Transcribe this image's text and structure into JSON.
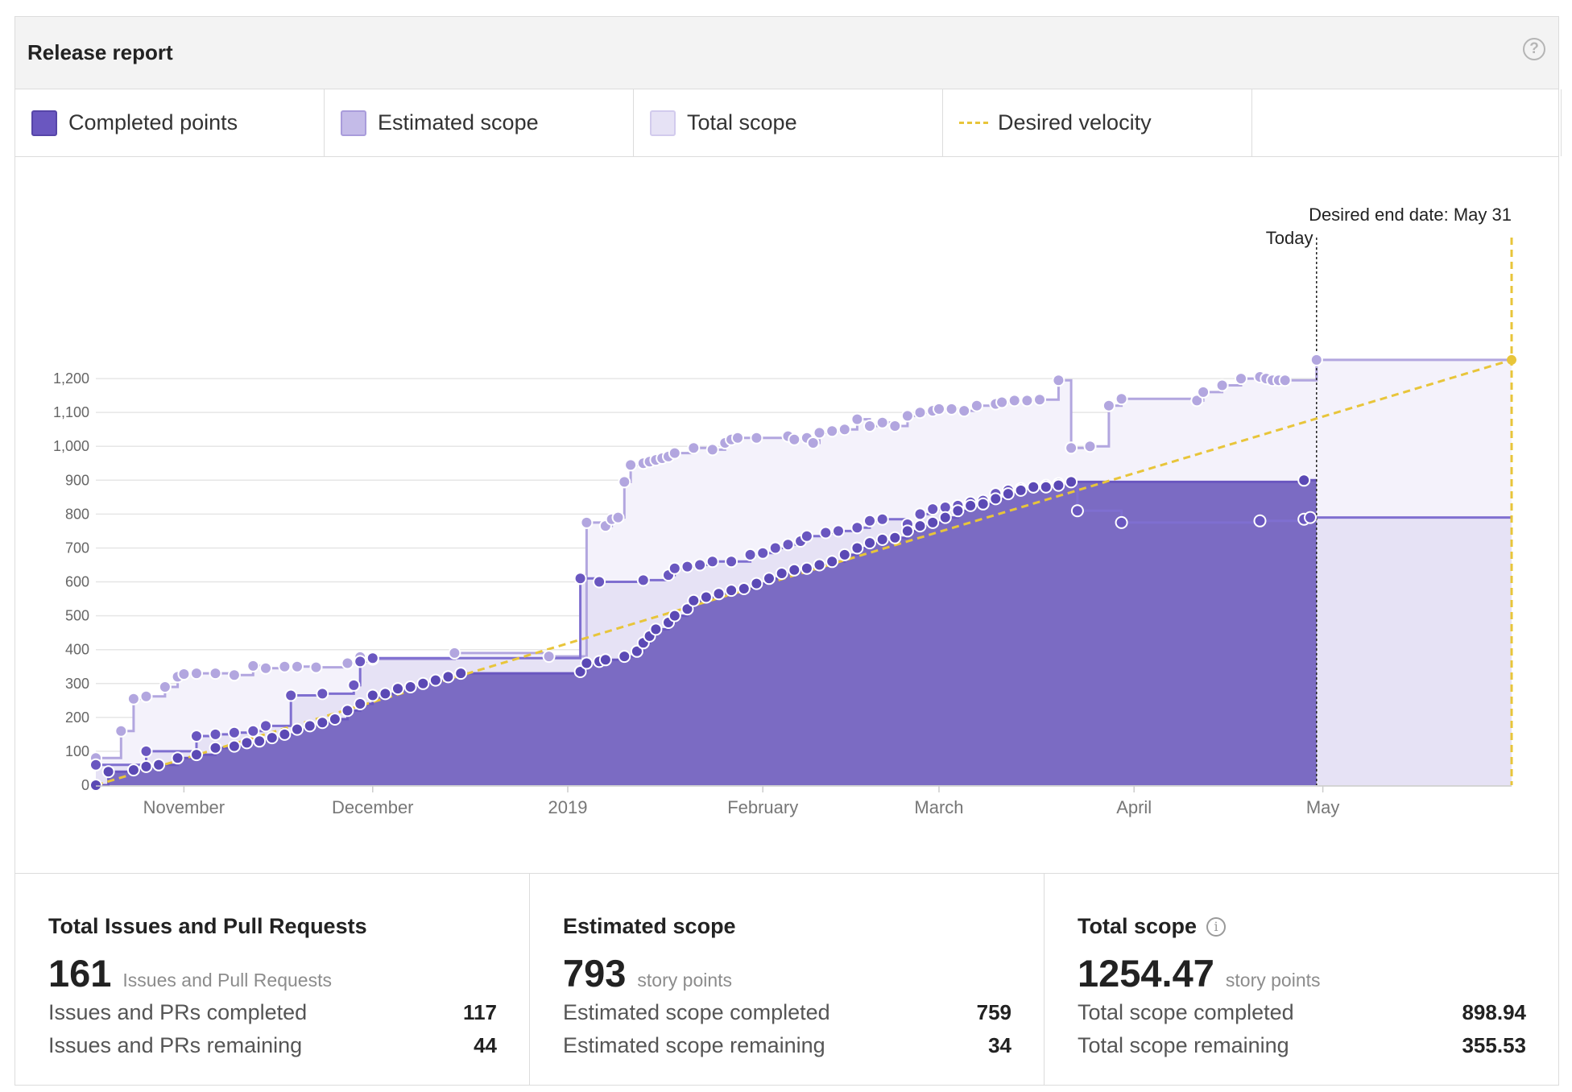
{
  "header": {
    "title": "Release report",
    "help_icon": "question-circle-icon"
  },
  "legend": [
    {
      "label": "Completed points",
      "color": "#6a57c0"
    },
    {
      "label": "Estimated scope",
      "color": "#c4bbe8"
    },
    {
      "label": "Total scope",
      "color": "#e6e2f5"
    },
    {
      "label": "Desired velocity",
      "color": "#e8c53a"
    }
  ],
  "chart_data": {
    "type": "area",
    "x_axis": {
      "ticks": [
        "November",
        "December",
        "2019",
        "February",
        "March",
        "April",
        "May"
      ],
      "tick_dates": [
        "2018-11-01",
        "2018-12-01",
        "2019-01-01",
        "2019-02-01",
        "2019-03-01",
        "2019-04-01",
        "2019-05-01"
      ],
      "range": [
        "2018-10-18",
        "2019-05-31"
      ]
    },
    "y_axis": {
      "ticks": [
        "0",
        "100",
        "200",
        "300",
        "400",
        "500",
        "600",
        "700",
        "800",
        "900",
        "1,000",
        "1,100",
        "1,200"
      ],
      "range": [
        0,
        1300
      ]
    },
    "grid": true,
    "annotations": {
      "today_label": "Today",
      "today_date": "2019-04-30",
      "end_label": "Desired end date: May 31",
      "end_date": "2019-05-31"
    },
    "series": [
      {
        "name": "Total scope",
        "color": "#b2a6df",
        "x": [
          "2018-10-18",
          "2018-10-22",
          "2018-10-24",
          "2018-10-26",
          "2018-10-29",
          "2018-10-31",
          "2018-11-01",
          "2018-11-03",
          "2018-11-06",
          "2018-11-09",
          "2018-11-12",
          "2018-11-14",
          "2018-11-17",
          "2018-11-19",
          "2018-11-22",
          "2018-11-27",
          "2018-11-29",
          "2018-12-01",
          "2018-12-14",
          "2018-12-29",
          "2019-01-04",
          "2019-01-07",
          "2019-01-08",
          "2019-01-09",
          "2019-01-10",
          "2019-01-11",
          "2019-01-13",
          "2019-01-14",
          "2019-01-15",
          "2019-01-16",
          "2019-01-17",
          "2019-01-18",
          "2019-01-21",
          "2019-01-24",
          "2019-01-26",
          "2019-01-27",
          "2019-01-28",
          "2019-01-31",
          "2019-02-05",
          "2019-02-06",
          "2019-02-08",
          "2019-02-09",
          "2019-02-10",
          "2019-02-12",
          "2019-02-14",
          "2019-02-16",
          "2019-02-18",
          "2019-02-20",
          "2019-02-22",
          "2019-02-24",
          "2019-02-26",
          "2019-02-28",
          "2019-03-01",
          "2019-03-03",
          "2019-03-05",
          "2019-03-07",
          "2019-03-10",
          "2019-03-11",
          "2019-03-13",
          "2019-03-15",
          "2019-03-17",
          "2019-03-20",
          "2019-03-22",
          "2019-03-25",
          "2019-03-28",
          "2019-03-30",
          "2019-04-11",
          "2019-04-12",
          "2019-04-15",
          "2019-04-18",
          "2019-04-21",
          "2019-04-22",
          "2019-04-23",
          "2019-04-24",
          "2019-04-25",
          "2019-04-30",
          "2019-05-31"
        ],
        "values": [
          80,
          160,
          255,
          262,
          290,
          320,
          328,
          330,
          330,
          325,
          352,
          345,
          350,
          350,
          348,
          360,
          378,
          372,
          390,
          380,
          775,
          765,
          785,
          790,
          895,
          945,
          950,
          955,
          960,
          965,
          970,
          980,
          995,
          990,
          1010,
          1020,
          1025,
          1025,
          1030,
          1020,
          1025,
          1010,
          1040,
          1045,
          1050,
          1080,
          1060,
          1070,
          1060,
          1090,
          1100,
          1105,
          1110,
          1110,
          1105,
          1120,
          1125,
          1130,
          1135,
          1135,
          1138,
          1195,
          995,
          1000,
          1120,
          1140,
          1135,
          1160,
          1180,
          1200,
          1205,
          1200,
          1195,
          1195,
          1195,
          1255,
          1255
        ]
      },
      {
        "name": "Estimated scope",
        "color": "#7f6fd0",
        "x": [
          "2018-10-18",
          "2018-10-26",
          "2018-11-03",
          "2018-11-06",
          "2018-11-09",
          "2018-11-12",
          "2018-11-14",
          "2018-11-18",
          "2018-11-23",
          "2018-11-28",
          "2018-11-29",
          "2018-12-01",
          "2019-01-03",
          "2019-01-06",
          "2019-01-13",
          "2019-01-17",
          "2019-01-18",
          "2019-01-20",
          "2019-01-22",
          "2019-01-24",
          "2019-01-27",
          "2019-01-30",
          "2019-02-01",
          "2019-02-03",
          "2019-02-05",
          "2019-02-07",
          "2019-02-08",
          "2019-02-11",
          "2019-02-13",
          "2019-02-16",
          "2019-02-18",
          "2019-02-20",
          "2019-02-24",
          "2019-02-26",
          "2019-02-28",
          "2019-03-02",
          "2019-03-04",
          "2019-03-06",
          "2019-03-08",
          "2019-03-10",
          "2019-03-12",
          "2019-03-14",
          "2019-03-16",
          "2019-03-18",
          "2019-03-20",
          "2019-03-23",
          "2019-03-30",
          "2019-04-21",
          "2019-04-28",
          "2019-04-29",
          "2019-05-31"
        ],
        "values": [
          60,
          100,
          145,
          150,
          155,
          160,
          175,
          265,
          270,
          295,
          365,
          375,
          610,
          600,
          605,
          620,
          640,
          645,
          650,
          660,
          660,
          680,
          685,
          700,
          710,
          720,
          735,
          745,
          750,
          760,
          780,
          785,
          770,
          800,
          815,
          820,
          825,
          835,
          840,
          860,
          870,
          875,
          880,
          885,
          890,
          810,
          775,
          780,
          785,
          790,
          790
        ]
      },
      {
        "name": "Completed points",
        "color": "#6a57c0",
        "fill": "#7b6bc3",
        "x": [
          "2018-10-18",
          "2018-10-20",
          "2018-10-24",
          "2018-10-26",
          "2018-10-28",
          "2018-10-31",
          "2018-11-03",
          "2018-11-06",
          "2018-11-09",
          "2018-11-11",
          "2018-11-13",
          "2018-11-15",
          "2018-11-17",
          "2018-11-19",
          "2018-11-21",
          "2018-11-23",
          "2018-11-25",
          "2018-11-27",
          "2018-11-29",
          "2018-12-01",
          "2018-12-03",
          "2018-12-05",
          "2018-12-07",
          "2018-12-09",
          "2018-12-11",
          "2018-12-13",
          "2018-12-15",
          "2019-01-03",
          "2019-01-04",
          "2019-01-06",
          "2019-01-07",
          "2019-01-10",
          "2019-01-12",
          "2019-01-13",
          "2019-01-14",
          "2019-01-15",
          "2019-01-17",
          "2019-01-18",
          "2019-01-20",
          "2019-01-21",
          "2019-01-23",
          "2019-01-25",
          "2019-01-27",
          "2019-01-29",
          "2019-01-31",
          "2019-02-02",
          "2019-02-04",
          "2019-02-06",
          "2019-02-08",
          "2019-02-10",
          "2019-02-12",
          "2019-02-14",
          "2019-02-16",
          "2019-02-18",
          "2019-02-20",
          "2019-02-22",
          "2019-02-24",
          "2019-02-26",
          "2019-02-28",
          "2019-03-02",
          "2019-03-04",
          "2019-03-06",
          "2019-03-08",
          "2019-03-10",
          "2019-03-12",
          "2019-03-14",
          "2019-03-16",
          "2019-03-18",
          "2019-03-20",
          "2019-03-22",
          "2019-04-28",
          "2019-04-30"
        ],
        "values": [
          0,
          40,
          45,
          55,
          60,
          80,
          90,
          110,
          115,
          125,
          130,
          140,
          150,
          165,
          175,
          185,
          195,
          220,
          240,
          265,
          270,
          285,
          290,
          300,
          310,
          320,
          330,
          335,
          360,
          365,
          370,
          380,
          395,
          420,
          440,
          460,
          480,
          500,
          520,
          545,
          555,
          565,
          575,
          580,
          595,
          610,
          625,
          635,
          640,
          650,
          660,
          680,
          700,
          715,
          725,
          730,
          750,
          765,
          775,
          790,
          810,
          825,
          830,
          845,
          860,
          870,
          880,
          880,
          885,
          895,
          900,
          900
        ]
      },
      {
        "name": "Desired velocity",
        "color": "#e8c53a",
        "x": [
          "2018-10-18",
          "2019-05-31"
        ],
        "values": [
          0,
          1255
        ]
      }
    ]
  },
  "stats": [
    {
      "heading": "Total Issues and Pull Requests",
      "value": "161",
      "unit": "Issues and Pull Requests",
      "rows": [
        {
          "label": "Issues and PRs completed",
          "value": "117"
        },
        {
          "label": "Issues and PRs remaining",
          "value": "44"
        }
      ]
    },
    {
      "heading": "Estimated scope",
      "value": "793",
      "unit": "story points",
      "rows": [
        {
          "label": "Estimated scope completed",
          "value": "759"
        },
        {
          "label": "Estimated scope remaining",
          "value": "34"
        }
      ]
    },
    {
      "heading": "Total scope",
      "info_icon": "info-circle-icon",
      "value": "1254.47",
      "unit": "story points",
      "rows": [
        {
          "label": "Total scope completed",
          "value": "898.94"
        },
        {
          "label": "Total scope remaining",
          "value": "355.53"
        }
      ]
    }
  ]
}
